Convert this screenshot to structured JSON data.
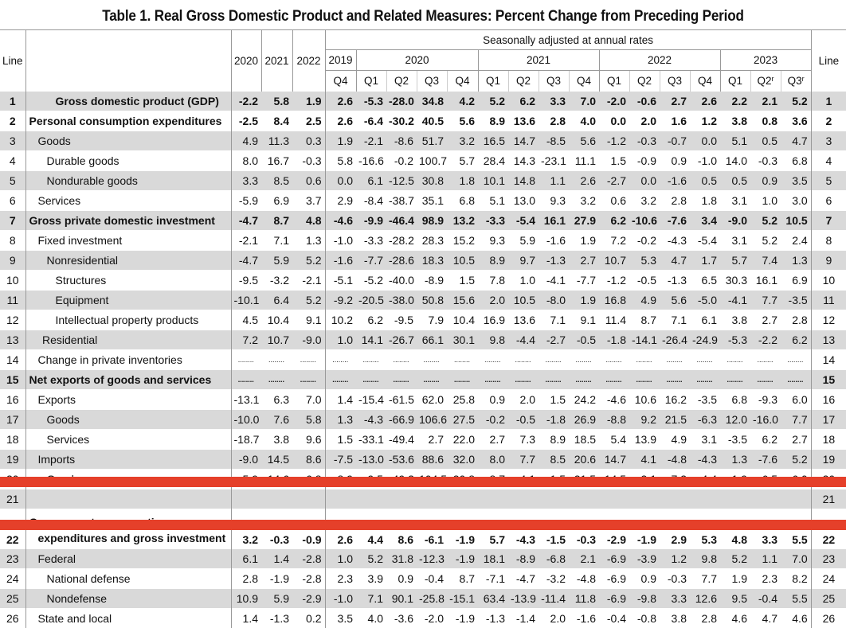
{
  "title": "Table 1. Real Gross Domestic Product and Related Measures: Percent Change from Preceding Period",
  "header": {
    "line": "Line",
    "annual_years": [
      "2020",
      "2021",
      "2022"
    ],
    "seasonal_note": "Seasonally adjusted at annual rates",
    "quarter_years": [
      {
        "year": "2019",
        "span": 1
      },
      {
        "year": "2020",
        "span": 4
      },
      {
        "year": "2021",
        "span": 4
      },
      {
        "year": "2022",
        "span": 4
      },
      {
        "year": "2023",
        "span": 3
      }
    ],
    "quarters": [
      "Q4",
      "Q1",
      "Q2",
      "Q3",
      "Q4",
      "Q1",
      "Q2",
      "Q3",
      "Q4",
      "Q1",
      "Q2",
      "Q3",
      "Q4",
      "Q1",
      "Q2",
      "Q3"
    ],
    "quarter_marks": [
      "",
      "",
      "",
      "",
      "",
      "",
      "",
      "",
      "",
      "",
      "",
      "",
      "",
      "",
      "r",
      "r"
    ]
  },
  "rows": [
    {
      "line": "1",
      "label": "Gross domestic product (GDP)",
      "level": 3,
      "bold": true,
      "values": [
        "-2.2",
        "5.8",
        "1.9",
        "2.6",
        "-5.3",
        "-28.0",
        "34.8",
        "4.2",
        "5.2",
        "6.2",
        "3.3",
        "7.0",
        "-2.0",
        "-0.6",
        "2.7",
        "2.6",
        "2.2",
        "2.1",
        "5.2"
      ]
    },
    {
      "line": "2",
      "label": "Personal consumption expenditures",
      "level": 0,
      "bold": true,
      "values": [
        "-2.5",
        "8.4",
        "2.5",
        "2.6",
        "-6.4",
        "-30.2",
        "40.5",
        "5.6",
        "8.9",
        "13.6",
        "2.8",
        "4.0",
        "0.0",
        "2.0",
        "1.6",
        "1.2",
        "3.8",
        "0.8",
        "3.6"
      ]
    },
    {
      "line": "3",
      "label": "Goods",
      "level": 1,
      "bold": false,
      "values": [
        "4.9",
        "11.3",
        "0.3",
        "1.9",
        "-2.1",
        "-8.6",
        "51.7",
        "3.2",
        "16.5",
        "14.7",
        "-8.5",
        "5.6",
        "-1.2",
        "-0.3",
        "-0.7",
        "0.0",
        "5.1",
        "0.5",
        "4.7"
      ]
    },
    {
      "line": "4",
      "label": "Durable goods",
      "level": 2,
      "bold": false,
      "values": [
        "8.0",
        "16.7",
        "-0.3",
        "5.8",
        "-16.6",
        "-0.2",
        "100.7",
        "5.7",
        "28.4",
        "14.3",
        "-23.1",
        "11.1",
        "1.5",
        "-0.9",
        "0.9",
        "-1.0",
        "14.0",
        "-0.3",
        "6.8"
      ]
    },
    {
      "line": "5",
      "label": "Nondurable goods",
      "level": 2,
      "bold": false,
      "values": [
        "3.3",
        "8.5",
        "0.6",
        "0.0",
        "6.1",
        "-12.5",
        "30.8",
        "1.8",
        "10.1",
        "14.8",
        "1.1",
        "2.6",
        "-2.7",
        "0.0",
        "-1.6",
        "0.5",
        "0.5",
        "0.9",
        "3.5"
      ]
    },
    {
      "line": "6",
      "label": "Services",
      "level": 1,
      "bold": false,
      "values": [
        "-5.9",
        "6.9",
        "3.7",
        "2.9",
        "-8.4",
        "-38.7",
        "35.1",
        "6.8",
        "5.1",
        "13.0",
        "9.3",
        "3.2",
        "0.6",
        "3.2",
        "2.8",
        "1.8",
        "3.1",
        "1.0",
        "3.0"
      ]
    },
    {
      "line": "7",
      "label": "Gross private domestic investment",
      "level": 0,
      "bold": true,
      "values": [
        "-4.7",
        "8.7",
        "4.8",
        "-4.6",
        "-9.9",
        "-46.4",
        "98.9",
        "13.2",
        "-3.3",
        "-5.4",
        "16.1",
        "27.9",
        "6.2",
        "-10.6",
        "-7.6",
        "3.4",
        "-9.0",
        "5.2",
        "10.5"
      ]
    },
    {
      "line": "8",
      "label": "Fixed investment",
      "level": 1,
      "bold": false,
      "values": [
        "-2.1",
        "7.1",
        "1.3",
        "-1.0",
        "-3.3",
        "-28.2",
        "28.3",
        "15.2",
        "9.3",
        "5.9",
        "-1.6",
        "1.9",
        "7.2",
        "-0.2",
        "-4.3",
        "-5.4",
        "3.1",
        "5.2",
        "2.4"
      ]
    },
    {
      "line": "9",
      "label": "Nonresidential",
      "level": 2,
      "bold": false,
      "values": [
        "-4.7",
        "5.9",
        "5.2",
        "-1.6",
        "-7.7",
        "-28.6",
        "18.3",
        "10.5",
        "8.9",
        "9.7",
        "-1.3",
        "2.7",
        "10.7",
        "5.3",
        "4.7",
        "1.7",
        "5.7",
        "7.4",
        "1.3"
      ]
    },
    {
      "line": "10",
      "label": "Structures",
      "level": 3,
      "bold": false,
      "values": [
        "-9.5",
        "-3.2",
        "-2.1",
        "-5.1",
        "-5.2",
        "-40.0",
        "-8.9",
        "1.5",
        "7.8",
        "1.0",
        "-4.1",
        "-7.7",
        "-1.2",
        "-0.5",
        "-1.3",
        "6.5",
        "30.3",
        "16.1",
        "6.9"
      ]
    },
    {
      "line": "11",
      "label": "Equipment",
      "level": 3,
      "bold": false,
      "values": [
        "-10.1",
        "6.4",
        "5.2",
        "-9.2",
        "-20.5",
        "-38.0",
        "50.8",
        "15.6",
        "2.0",
        "10.5",
        "-8.0",
        "1.9",
        "16.8",
        "4.9",
        "5.6",
        "-5.0",
        "-4.1",
        "7.7",
        "-3.5"
      ]
    },
    {
      "line": "12",
      "label": "Intellectual property products",
      "level": 3,
      "bold": false,
      "values": [
        "4.5",
        "10.4",
        "9.1",
        "10.2",
        "6.2",
        "-9.5",
        "7.9",
        "10.4",
        "16.9",
        "13.6",
        "7.1",
        "9.1",
        "11.4",
        "8.7",
        "7.1",
        "6.1",
        "3.8",
        "2.7",
        "2.8"
      ]
    },
    {
      "line": "13",
      "label": "Residential",
      "level": 1.5,
      "bold": false,
      "values": [
        "7.2",
        "10.7",
        "-9.0",
        "1.0",
        "14.1",
        "-26.7",
        "66.1",
        "30.1",
        "9.8",
        "-4.4",
        "-2.7",
        "-0.5",
        "-1.8",
        "-14.1",
        "-26.4",
        "-24.9",
        "-5.3",
        "-2.2",
        "6.2"
      ]
    },
    {
      "line": "14",
      "label": "Change in private inventories",
      "level": 1,
      "bold": false,
      "values": [
        "........",
        "........",
        "........",
        "........",
        "........",
        "........",
        "........",
        "........",
        "........",
        "........",
        "........",
        "........",
        "........",
        "........",
        "........",
        "........",
        "........",
        "........",
        "........"
      ]
    },
    {
      "line": "15",
      "label": "Net exports of goods and services",
      "level": 0,
      "bold": true,
      "values": [
        "........",
        "........",
        "........",
        "........",
        "........",
        "........",
        "........",
        "........",
        "........",
        "........",
        "........",
        "........",
        "........",
        "........",
        "........",
        "........",
        "........",
        "........",
        "........"
      ]
    },
    {
      "line": "16",
      "label": "Exports",
      "level": 1,
      "bold": false,
      "values": [
        "-13.1",
        "6.3",
        "7.0",
        "1.4",
        "-15.4",
        "-61.5",
        "62.0",
        "25.8",
        "0.9",
        "2.0",
        "1.5",
        "24.2",
        "-4.6",
        "10.6",
        "16.2",
        "-3.5",
        "6.8",
        "-9.3",
        "6.0"
      ]
    },
    {
      "line": "17",
      "label": "Goods",
      "level": 2,
      "bold": false,
      "values": [
        "-10.0",
        "7.6",
        "5.8",
        "1.3",
        "-4.3",
        "-66.9",
        "106.6",
        "27.5",
        "-0.2",
        "-0.5",
        "-1.8",
        "26.9",
        "-8.8",
        "9.2",
        "21.5",
        "-6.3",
        "12.0",
        "-16.0",
        "7.7"
      ]
    },
    {
      "line": "18",
      "label": "Services",
      "level": 2,
      "bold": false,
      "values": [
        "-18.7",
        "3.8",
        "9.6",
        "1.5",
        "-33.1",
        "-49.4",
        "2.7",
        "22.0",
        "2.7",
        "7.3",
        "8.9",
        "18.5",
        "5.4",
        "13.9",
        "4.9",
        "3.1",
        "-3.5",
        "6.2",
        "2.7"
      ]
    },
    {
      "line": "19",
      "label": "Imports",
      "level": 1,
      "bold": false,
      "values": [
        "-9.0",
        "14.5",
        "8.6",
        "-7.5",
        "-13.0",
        "-53.6",
        "88.6",
        "32.0",
        "8.0",
        "7.7",
        "8.5",
        "20.6",
        "14.7",
        "4.1",
        "-4.8",
        "-4.3",
        "1.3",
        "-7.6",
        "5.2"
      ]
    },
    {
      "line": "20",
      "label": "Goods",
      "level": 2,
      "bold": false,
      "values": [
        "-5.9",
        "14.6",
        "6.8",
        "-8.9",
        "-9.5",
        "-49.2",
        "104.5",
        "30.8",
        "8.7",
        "4.1",
        "1.5",
        "21.5",
        "14.5",
        "2.1",
        "-7.3",
        "-4.4",
        "1.9",
        "-6.5",
        "6.0"
      ]
    },
    {
      "line": "21",
      "label": "",
      "level": 2,
      "bold": false,
      "values": [
        "",
        "",
        "",
        "",
        "",
        "",
        "",
        "",
        "",
        "",
        "",
        "",
        "",
        "",
        "",
        "",
        "",
        "",
        ""
      ]
    },
    {
      "line": "22",
      "label": "Government consumption",
      "label2": "expenditures and gross investment",
      "level": 0,
      "bold": true,
      "values": [
        "3.2",
        "-0.3",
        "-0.9",
        "2.6",
        "4.4",
        "8.6",
        "-6.1",
        "-1.9",
        "5.7",
        "-4.3",
        "-1.5",
        "-0.3",
        "-2.9",
        "-1.9",
        "2.9",
        "5.3",
        "4.8",
        "3.3",
        "5.5"
      ]
    },
    {
      "line": "23",
      "label": "Federal",
      "level": 1,
      "bold": false,
      "values": [
        "6.1",
        "1.4",
        "-2.8",
        "1.0",
        "5.2",
        "31.8",
        "-12.3",
        "-1.9",
        "18.1",
        "-8.9",
        "-6.8",
        "2.1",
        "-6.9",
        "-3.9",
        "1.2",
        "9.8",
        "5.2",
        "1.1",
        "7.0"
      ]
    },
    {
      "line": "24",
      "label": "National defense",
      "level": 2,
      "bold": false,
      "values": [
        "2.8",
        "-1.9",
        "-2.8",
        "2.3",
        "3.9",
        "0.9",
        "-0.4",
        "8.7",
        "-7.1",
        "-4.7",
        "-3.2",
        "-4.8",
        "-6.9",
        "0.9",
        "-0.3",
        "7.7",
        "1.9",
        "2.3",
        "8.2"
      ]
    },
    {
      "line": "25",
      "label": "Nondefense",
      "level": 2,
      "bold": false,
      "values": [
        "10.9",
        "5.9",
        "-2.9",
        "-1.0",
        "7.1",
        "90.1",
        "-25.8",
        "-15.1",
        "63.4",
        "-13.9",
        "-11.4",
        "11.8",
        "-6.9",
        "-9.8",
        "3.3",
        "12.6",
        "9.5",
        "-0.4",
        "5.5"
      ]
    },
    {
      "line": "26",
      "label": "State and local",
      "level": 1,
      "bold": false,
      "values": [
        "1.4",
        "-1.3",
        "0.2",
        "3.5",
        "4.0",
        "-3.6",
        "-2.0",
        "-1.9",
        "-1.3",
        "-1.4",
        "2.0",
        "-1.6",
        "-0.4",
        "-0.8",
        "3.8",
        "2.8",
        "4.6",
        "4.7",
        "4.6"
      ]
    }
  ],
  "colors": {
    "shade": "#d9d9d9",
    "highlight": "#e5402a"
  }
}
